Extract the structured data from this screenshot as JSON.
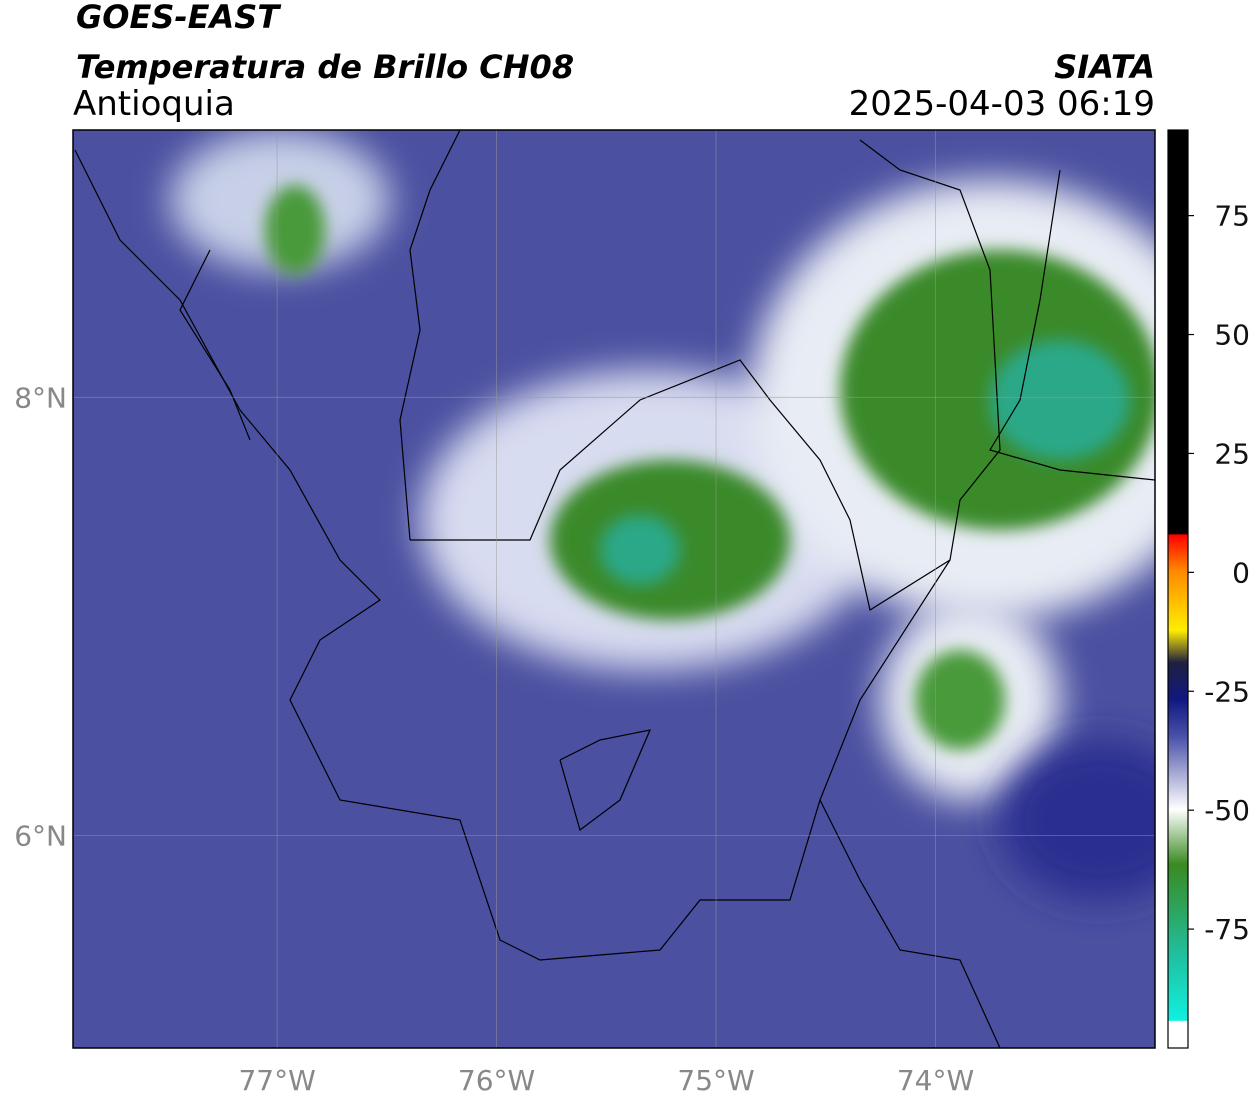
{
  "header": {
    "title": "GOES-EAST",
    "subtitle": "Temperatura de Brillo CH08",
    "region": "Antioquia",
    "source": "SIATA",
    "datetime": "2025-04-03 06:19"
  },
  "map": {
    "xlim": [
      -77.93,
      -73.0
    ],
    "ylim": [
      5.03,
      9.22
    ],
    "xticks": [
      {
        "value": -77,
        "label": "77°W"
      },
      {
        "value": -76,
        "label": "76°W"
      },
      {
        "value": -75,
        "label": "75°W"
      },
      {
        "value": -74,
        "label": "74°W"
      }
    ],
    "yticks": [
      {
        "value": 8,
        "label": "8°N"
      },
      {
        "value": 6,
        "label": "6°N"
      }
    ],
    "grid": true
  },
  "colorbar": {
    "lim": [
      -100,
      93
    ],
    "ticks": [
      75,
      50,
      25,
      0,
      -25,
      -50,
      -75
    ]
  }
}
